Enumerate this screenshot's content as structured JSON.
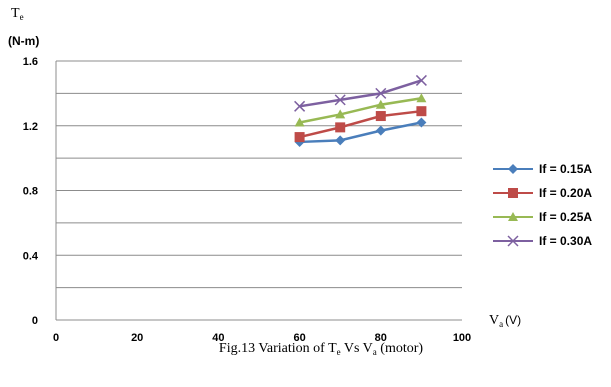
{
  "chart_data": {
    "type": "line",
    "ylabel_main": "T",
    "ylabel_sub": "e",
    "ylabel_unit": "(N-m)",
    "xlabel_main": "V",
    "xlabel_sub": "a",
    "xlabel_unit": "(V)",
    "caption": "Fig.13 Variation of Te Vs Va (motor)",
    "caption_parts": [
      "Fig.13 Variation of T",
      "e",
      " Vs V",
      "a",
      " (motor)"
    ],
    "xlim": [
      0,
      100
    ],
    "ylim": [
      0,
      1.6
    ],
    "x_ticks": [
      {
        "value": 0,
        "label": "0"
      },
      {
        "value": 20,
        "label": "20"
      },
      {
        "value": 40,
        "label": "40"
      },
      {
        "value": 60,
        "label": "60"
      },
      {
        "value": 80,
        "label": "80"
      },
      {
        "value": 100,
        "label": "100"
      }
    ],
    "y_ticks": [
      {
        "value": 0,
        "label": "0"
      },
      {
        "value": 0.4,
        "label": "0.4"
      },
      {
        "value": 0.8,
        "label": "0.8"
      },
      {
        "value": 1.2,
        "label": "1.2"
      },
      {
        "value": 1.6,
        "label": "1.6"
      }
    ],
    "gridlines_y": [
      0.2,
      0.4,
      0.6,
      0.8,
      1.0,
      1.2,
      1.4,
      1.6
    ],
    "grid": true,
    "legend_position": "right",
    "x": [
      60,
      70,
      80,
      90
    ],
    "series": [
      {
        "name": "If = 0.15A",
        "values": [
          1.1,
          1.11,
          1.17,
          1.22
        ],
        "color": "#4A7EBB",
        "marker": "diamond"
      },
      {
        "name": "If = 0.20A",
        "values": [
          1.13,
          1.19,
          1.26,
          1.29
        ],
        "color": "#BE4B48",
        "marker": "square"
      },
      {
        "name": "If = 0.25A",
        "values": [
          1.22,
          1.27,
          1.33,
          1.37
        ],
        "color": "#98B954",
        "marker": "triangle"
      },
      {
        "name": "If = 0.30A",
        "values": [
          1.32,
          1.36,
          1.4,
          1.48
        ],
        "color": "#7D60A0",
        "marker": "x"
      }
    ]
  }
}
